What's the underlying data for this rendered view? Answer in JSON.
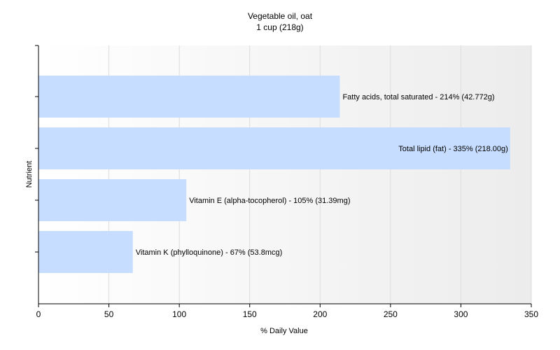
{
  "chart_data": {
    "type": "bar",
    "orientation": "horizontal",
    "title": "Vegetable oil, oat",
    "subtitle": "1 cup (218g)",
    "xlabel": "% Daily Value",
    "ylabel": "Nutrient",
    "xlim": [
      0,
      350
    ],
    "xticks": [
      "0",
      "50",
      "100",
      "150",
      "200",
      "250",
      "300",
      "350"
    ],
    "grid": true,
    "bar_color": "#c6ddff",
    "categories": [
      "Fatty acids, total saturated",
      "Total lipid (fat)",
      "Vitamin E (alpha-tocopherol)",
      "Vitamin K (phylloquinone)"
    ],
    "values": [
      214,
      335,
      105,
      67
    ],
    "bar_labels": [
      "Fatty acids, total saturated - 214% (42.772g)",
      "Total lipid (fat) - 335% (218.00g)",
      "Vitamin E (alpha-tocopherol) - 105% (31.39mg)",
      "Vitamin K (phylloquinone) - 67% (53.8mcg)"
    ]
  }
}
